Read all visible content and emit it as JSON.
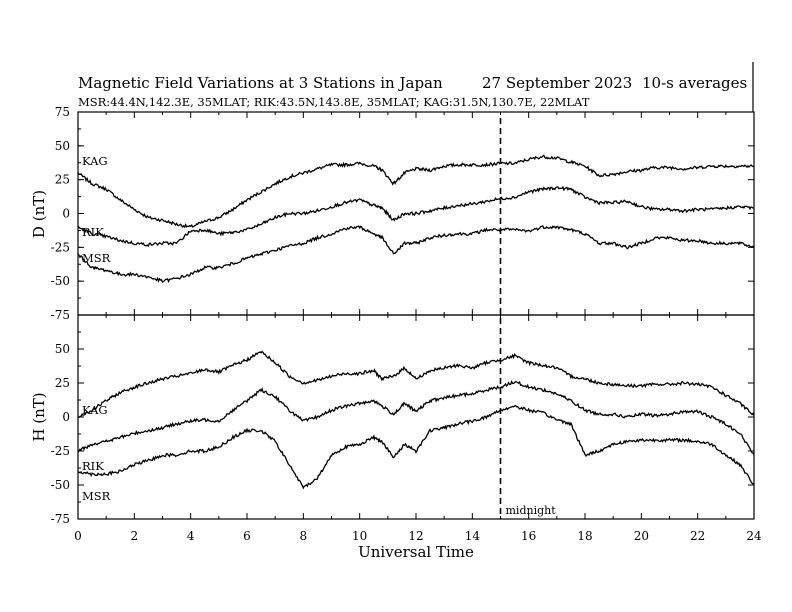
{
  "chart_data": {
    "type": "line",
    "title": "Magnetic Field Variations at 3 Stations in Japan",
    "date": "27 September 2023",
    "averaging": "10-s averages",
    "subtitle": "MSR:44.4N,142.3E, 35MLAT;  RIK:43.5N,143.8E, 35MLAT;  KAG:31.5N,130.7E, 22MLAT",
    "xlabel": "Universal Time",
    "xlim": [
      0,
      24
    ],
    "xticks": [
      "0",
      "2",
      "4",
      "6",
      "8",
      "10",
      "12",
      "14",
      "16",
      "18",
      "20",
      "22",
      "24"
    ],
    "annotation": {
      "x": 15,
      "label": "midnight"
    },
    "panels": [
      {
        "ylabel": "D (nT)",
        "ylim": [
          -75,
          75
        ],
        "yticks": [
          "75",
          "50",
          "25",
          "0",
          "-25",
          "-50",
          "-75"
        ],
        "x": [
          0,
          0.5,
          1,
          1.5,
          2,
          2.5,
          3,
          3.5,
          4,
          4.5,
          5,
          5.5,
          6,
          6.5,
          7,
          7.5,
          8,
          8.5,
          9,
          9.5,
          10,
          10.5,
          10.8,
          11.2,
          11.6,
          12,
          12.5,
          13,
          13.5,
          14,
          14.5,
          15,
          15.5,
          16,
          16.5,
          17,
          17.5,
          18,
          18.5,
          19,
          19.5,
          20,
          20.5,
          21,
          21.5,
          22,
          22.5,
          23,
          23.5,
          24
        ],
        "series": [
          {
            "name": "KAG",
            "values": [
              30,
              22,
              18,
              10,
              3,
              -3,
              -5,
              -8,
              -10,
              -6,
              -3,
              3,
              10,
              16,
              22,
              27,
              30,
              33,
              36,
              36,
              37,
              35,
              32,
              22,
              30,
              33,
              32,
              35,
              36,
              36,
              36,
              37,
              37,
              40,
              42,
              41,
              38,
              35,
              28,
              29,
              31,
              32,
              34,
              34,
              33,
              34,
              35,
              35,
              35,
              35
            ]
          },
          {
            "name": "RIK",
            "values": [
              -10,
              -15,
              -17,
              -20,
              -22,
              -23,
              -22,
              -22,
              -13,
              -12,
              -15,
              -14,
              -12,
              -8,
              -3,
              0,
              0,
              2,
              5,
              8,
              10,
              6,
              4,
              -5,
              0,
              0,
              2,
              4,
              6,
              7,
              9,
              11,
              12,
              16,
              18,
              19,
              18,
              12,
              8,
              8,
              9,
              5,
              3,
              3,
              2,
              3,
              3,
              4,
              5,
              4
            ]
          },
          {
            "name": "MSR",
            "values": [
              -30,
              -40,
              -42,
              -45,
              -45,
              -47,
              -50,
              -48,
              -45,
              -40,
              -40,
              -37,
              -33,
              -30,
              -27,
              -24,
              -22,
              -18,
              -15,
              -11,
              -10,
              -15,
              -18,
              -30,
              -22,
              -22,
              -18,
              -16,
              -15,
              -15,
              -12,
              -12,
              -12,
              -13,
              -10,
              -10,
              -12,
              -15,
              -22,
              -22,
              -25,
              -22,
              -18,
              -18,
              -20,
              -20,
              -22,
              -22,
              -22,
              -25
            ]
          }
        ]
      },
      {
        "ylabel": "H (nT)",
        "ylim": [
          -75,
          75
        ],
        "yticks": [
          "50",
          "25",
          "0",
          "-25",
          "-50",
          "-75"
        ],
        "x": [
          0,
          0.5,
          1,
          1.5,
          2,
          2.5,
          3,
          3.5,
          4,
          4.5,
          5,
          5.5,
          6,
          6.5,
          7,
          7.5,
          8,
          8.5,
          9,
          9.5,
          10,
          10.5,
          10.8,
          11.2,
          11.6,
          12,
          12.5,
          13,
          13.5,
          14,
          14.5,
          15,
          15.5,
          16,
          16.5,
          17,
          17.5,
          18,
          18.5,
          19,
          19.5,
          20,
          20.5,
          21,
          21.5,
          22,
          22.5,
          23,
          23.5,
          24
        ],
        "series": [
          {
            "name": "KAG",
            "values": [
              0,
              5,
              12,
              18,
              22,
              25,
              28,
              30,
              32,
              35,
              33,
              38,
              42,
              48,
              40,
              30,
              25,
              27,
              30,
              32,
              32,
              34,
              28,
              30,
              36,
              28,
              34,
              36,
              38,
              36,
              40,
              42,
              45,
              40,
              38,
              36,
              30,
              28,
              25,
              24,
              23,
              23,
              24,
              24,
              25,
              24,
              22,
              16,
              10,
              1
            ]
          },
          {
            "name": "RIK",
            "values": [
              -25,
              -20,
              -18,
              -15,
              -12,
              -10,
              -8,
              -5,
              -3,
              -2,
              -3,
              5,
              12,
              20,
              15,
              5,
              -3,
              0,
              5,
              8,
              10,
              12,
              8,
              2,
              10,
              4,
              12,
              14,
              16,
              17,
              20,
              22,
              26,
              22,
              20,
              17,
              12,
              5,
              2,
              2,
              0,
              2,
              1,
              2,
              4,
              4,
              0,
              -5,
              -12,
              -28
            ]
          },
          {
            "name": "MSR",
            "values": [
              -40,
              -42,
              -42,
              -40,
              -35,
              -32,
              -28,
              -28,
              -25,
              -25,
              -22,
              -15,
              -10,
              -10,
              -18,
              -35,
              -52,
              -45,
              -28,
              -22,
              -20,
              -15,
              -18,
              -30,
              -20,
              -25,
              -10,
              -8,
              -5,
              -3,
              0,
              5,
              8,
              5,
              3,
              -2,
              -5,
              -28,
              -25,
              -20,
              -18,
              -17,
              -17,
              -17,
              -17,
              -18,
              -20,
              -28,
              -35,
              -50
            ]
          }
        ]
      }
    ]
  },
  "style": {
    "line_color": "#000000",
    "background": "#ffffff"
  }
}
